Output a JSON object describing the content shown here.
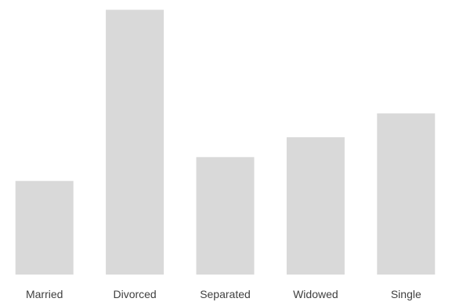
{
  "chart_data": {
    "type": "bar",
    "categories": [
      "Married",
      "Divorced",
      "Separated",
      "Widowed",
      "Single"
    ],
    "values": [
      23.5,
      66.5,
      29.5,
      34.5,
      40.5
    ],
    "title": "",
    "xlabel": "",
    "ylabel": "",
    "ylim": [
      0,
      67
    ],
    "grid": false,
    "legend": "none",
    "colors": {
      "bar": "#d9d9d9",
      "label": "#404040"
    }
  }
}
